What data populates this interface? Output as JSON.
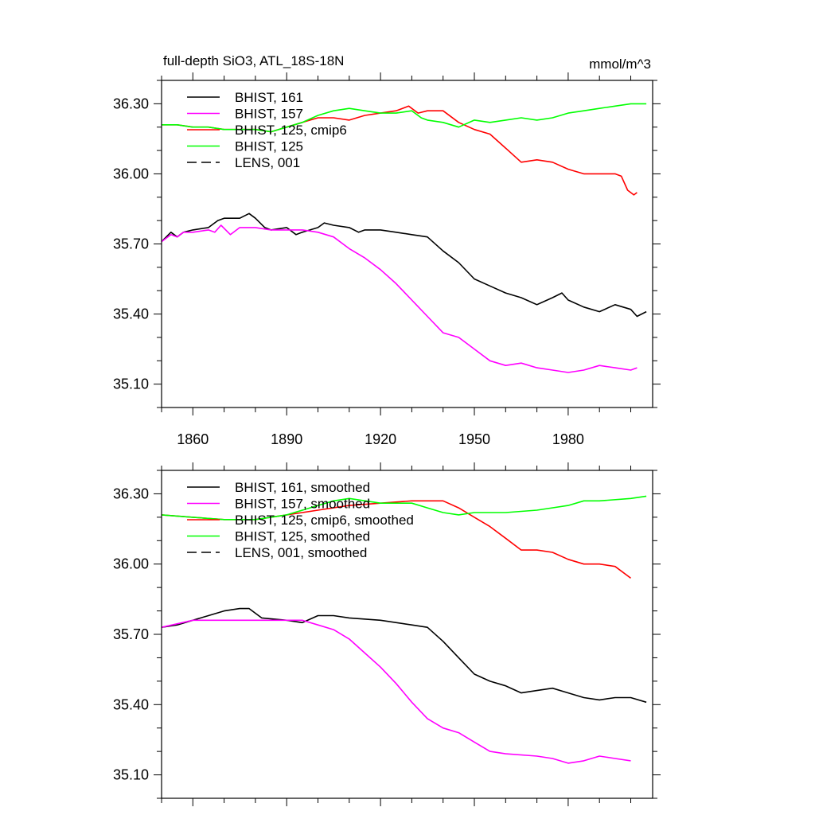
{
  "title": "full-depth SiO3, ATL_18S-18N",
  "units": "mmol/m^3",
  "chart_data": [
    {
      "type": "line",
      "panel": "top",
      "xlim": [
        1850,
        2007
      ],
      "ylim": [
        35.0,
        36.4
      ],
      "xticks": [
        1860,
        1890,
        1920,
        1950,
        1980
      ],
      "yticks": [
        35.1,
        35.4,
        35.7,
        36.0,
        36.3
      ],
      "ytick_labels": [
        "35.10",
        "35.40",
        "35.70",
        "36.00",
        "36.30"
      ],
      "xtick_labels": [
        "1860",
        "1890",
        "1920",
        "1950",
        "1980"
      ],
      "legend_placement": "top-left",
      "grid": false,
      "series": [
        {
          "name": "BHIST, 161",
          "color": "#000000",
          "dash": "solid",
          "x": [
            1850,
            1853,
            1855,
            1857,
            1860,
            1865,
            1868,
            1870,
            1875,
            1878,
            1880,
            1883,
            1885,
            1890,
            1893,
            1895,
            1900,
            1902,
            1905,
            1910,
            1913,
            1915,
            1920,
            1925,
            1930,
            1935,
            1940,
            1945,
            1950,
            1955,
            1960,
            1965,
            1970,
            1975,
            1978,
            1980,
            1985,
            1990,
            1995,
            2000,
            2002,
            2005
          ],
          "y": [
            35.71,
            35.75,
            35.73,
            35.75,
            35.76,
            35.77,
            35.8,
            35.81,
            35.81,
            35.83,
            35.81,
            35.77,
            35.76,
            35.77,
            35.74,
            35.75,
            35.77,
            35.79,
            35.78,
            35.77,
            35.75,
            35.76,
            35.76,
            35.75,
            35.74,
            35.73,
            35.67,
            35.62,
            35.55,
            35.52,
            35.49,
            35.47,
            35.44,
            35.47,
            35.49,
            35.46,
            35.43,
            35.41,
            35.44,
            35.42,
            35.39,
            35.41
          ]
        },
        {
          "name": "BHIST, 157",
          "color": "#ff00ff",
          "dash": "solid",
          "x": [
            1850,
            1853,
            1855,
            1857,
            1860,
            1865,
            1867,
            1869,
            1872,
            1875,
            1880,
            1885,
            1890,
            1895,
            1900,
            1905,
            1910,
            1915,
            1920,
            1925,
            1930,
            1935,
            1940,
            1945,
            1950,
            1955,
            1960,
            1965,
            1970,
            1975,
            1980,
            1985,
            1990,
            1995,
            2000,
            2002
          ],
          "y": [
            35.71,
            35.74,
            35.73,
            35.75,
            35.75,
            35.76,
            35.75,
            35.78,
            35.74,
            35.77,
            35.77,
            35.76,
            35.76,
            35.76,
            35.75,
            35.73,
            35.68,
            35.64,
            35.59,
            35.53,
            35.46,
            35.39,
            35.32,
            35.3,
            35.25,
            35.2,
            35.18,
            35.19,
            35.17,
            35.16,
            35.15,
            35.16,
            35.18,
            35.17,
            35.16,
            35.17
          ]
        },
        {
          "name": "BHIST, 125, cmip6",
          "color": "#ff0000",
          "dash": "solid",
          "x": [
            1850,
            1855,
            1860,
            1865,
            1870,
            1875,
            1880,
            1885,
            1890,
            1895,
            1900,
            1905,
            1910,
            1915,
            1920,
            1925,
            1929,
            1932,
            1935,
            1940,
            1945,
            1950,
            1955,
            1960,
            1965,
            1970,
            1975,
            1980,
            1985,
            1990,
            1995,
            1997,
            1999,
            2001,
            2002
          ],
          "y": [
            36.21,
            36.21,
            36.2,
            36.2,
            36.19,
            36.19,
            36.19,
            36.18,
            36.2,
            36.22,
            36.24,
            36.24,
            36.23,
            36.25,
            36.26,
            36.27,
            36.29,
            36.26,
            36.27,
            36.27,
            36.22,
            36.19,
            36.17,
            36.11,
            36.05,
            36.06,
            36.05,
            36.02,
            36.0,
            36.0,
            36.0,
            35.99,
            35.93,
            35.91,
            35.92
          ]
        },
        {
          "name": "BHIST, 125",
          "color": "#00ff00",
          "dash": "solid",
          "x": [
            1850,
            1855,
            1860,
            1865,
            1870,
            1875,
            1880,
            1885,
            1890,
            1895,
            1900,
            1905,
            1910,
            1915,
            1920,
            1925,
            1930,
            1933,
            1935,
            1940,
            1945,
            1950,
            1955,
            1960,
            1965,
            1970,
            1975,
            1980,
            1985,
            1990,
            1995,
            2000,
            2005
          ],
          "y": [
            36.21,
            36.21,
            36.2,
            36.2,
            36.19,
            36.19,
            36.19,
            36.18,
            36.2,
            36.22,
            36.25,
            36.27,
            36.28,
            36.27,
            36.26,
            36.26,
            36.27,
            36.24,
            36.23,
            36.22,
            36.2,
            36.23,
            36.22,
            36.23,
            36.24,
            36.23,
            36.24,
            36.26,
            36.27,
            36.28,
            36.29,
            36.3,
            36.3
          ]
        },
        {
          "name": "LENS, 001",
          "color": "#000000",
          "dash": "dashed",
          "x": [],
          "y": []
        }
      ]
    },
    {
      "type": "line",
      "panel": "bottom",
      "xlim": [
        1850,
        2007
      ],
      "ylim": [
        35.0,
        36.4
      ],
      "xticks": [
        1860,
        1890,
        1920,
        1950,
        1980
      ],
      "yticks": [
        35.1,
        35.4,
        35.7,
        36.0,
        36.3
      ],
      "ytick_labels": [
        "35.10",
        "35.40",
        "35.70",
        "36.00",
        "36.30"
      ],
      "legend_placement": "top-left",
      "grid": false,
      "series": [
        {
          "name": "BHIST, 161, smoothed",
          "color": "#000000",
          "dash": "solid",
          "x": [
            1850,
            1855,
            1860,
            1865,
            1870,
            1875,
            1878,
            1882,
            1890,
            1895,
            1900,
            1905,
            1910,
            1920,
            1930,
            1935,
            1940,
            1945,
            1950,
            1955,
            1960,
            1965,
            1970,
            1975,
            1980,
            1985,
            1990,
            1995,
            2000,
            2005
          ],
          "y": [
            35.73,
            35.74,
            35.76,
            35.78,
            35.8,
            35.81,
            35.81,
            35.77,
            35.76,
            35.75,
            35.78,
            35.78,
            35.77,
            35.76,
            35.74,
            35.73,
            35.67,
            35.6,
            35.53,
            35.5,
            35.48,
            35.45,
            35.46,
            35.47,
            35.45,
            35.43,
            35.42,
            35.43,
            35.43,
            35.41
          ]
        },
        {
          "name": "BHIST, 157, smoothed",
          "color": "#ff00ff",
          "dash": "solid",
          "x": [
            1850,
            1860,
            1870,
            1880,
            1890,
            1895,
            1900,
            1905,
            1910,
            1915,
            1920,
            1925,
            1930,
            1935,
            1940,
            1945,
            1950,
            1955,
            1960,
            1970,
            1975,
            1980,
            1985,
            1990,
            1995,
            2000
          ],
          "y": [
            35.73,
            35.76,
            35.76,
            35.76,
            35.76,
            35.76,
            35.74,
            35.72,
            35.68,
            35.62,
            35.56,
            35.49,
            35.41,
            35.34,
            35.3,
            35.28,
            35.24,
            35.2,
            35.19,
            35.18,
            35.17,
            35.15,
            35.16,
            35.18,
            35.17,
            35.16
          ]
        },
        {
          "name": "BHIST, 125, cmip6, smoothed",
          "color": "#ff0000",
          "dash": "solid",
          "x": [
            1850,
            1860,
            1870,
            1880,
            1890,
            1895,
            1900,
            1910,
            1920,
            1930,
            1940,
            1945,
            1950,
            1955,
            1960,
            1965,
            1970,
            1975,
            1980,
            1985,
            1990,
            1995,
            2000
          ],
          "y": [
            36.21,
            36.2,
            36.19,
            36.19,
            36.21,
            36.22,
            36.23,
            36.25,
            36.26,
            36.27,
            36.27,
            36.24,
            36.2,
            36.16,
            36.11,
            36.06,
            36.06,
            36.05,
            36.02,
            36.0,
            36.0,
            35.99,
            35.94
          ]
        },
        {
          "name": "BHIST, 125, smoothed",
          "color": "#00ff00",
          "dash": "solid",
          "x": [
            1850,
            1860,
            1870,
            1880,
            1890,
            1900,
            1905,
            1910,
            1920,
            1930,
            1935,
            1940,
            1945,
            1950,
            1960,
            1970,
            1980,
            1985,
            1990,
            2000,
            2005
          ],
          "y": [
            36.21,
            36.2,
            36.19,
            36.19,
            36.21,
            36.25,
            36.27,
            36.28,
            36.26,
            36.26,
            36.24,
            36.22,
            36.21,
            36.22,
            36.22,
            36.23,
            36.25,
            36.27,
            36.27,
            36.28,
            36.29
          ]
        },
        {
          "name": "LENS, 001, smoothed",
          "color": "#000000",
          "dash": "dashed",
          "x": [],
          "y": []
        }
      ]
    }
  ]
}
